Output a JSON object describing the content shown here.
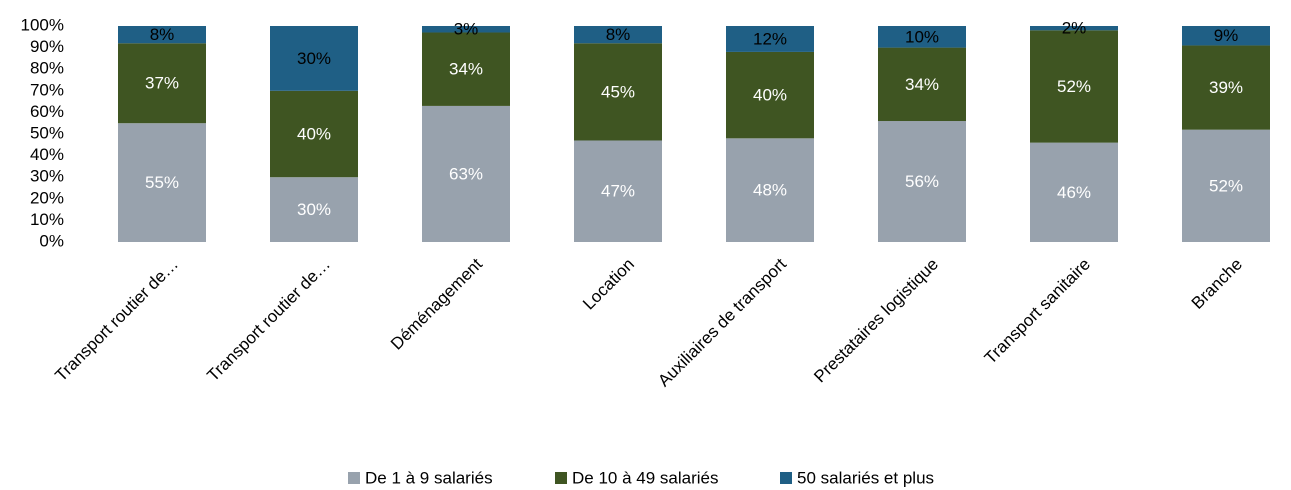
{
  "chart_data": {
    "type": "bar",
    "stacked": true,
    "categories": [
      "Transport routier de…",
      "Transport routier de…",
      "Déménagement",
      "Location",
      "Auxiliaires de transport",
      "Prestataires logistique",
      "Transport sanitaire",
      "Branche"
    ],
    "series": [
      {
        "name": "De 1 à 9 salariés",
        "color": "#98a2ad",
        "label_color": "#ffffff",
        "values": [
          55,
          30,
          63,
          47,
          48,
          56,
          46,
          52
        ],
        "value_labels": [
          "55%",
          "30%",
          "63%",
          "47%",
          "48%",
          "56%",
          "46%",
          "52%"
        ]
      },
      {
        "name": "De 10 à 49 salariés",
        "color": "#3f5522",
        "label_color": "#ffffff",
        "values": [
          37,
          40,
          34,
          45,
          40,
          34,
          52,
          39
        ],
        "value_labels": [
          "37%",
          "40%",
          "34%",
          "45%",
          "40%",
          "34%",
          "52%",
          "39%"
        ]
      },
      {
        "name": "50 salariés et plus",
        "color": "#1f5f85",
        "label_color": "#000000",
        "values": [
          8,
          30,
          3,
          8,
          12,
          10,
          2,
          9
        ],
        "value_labels": [
          "8%",
          "30%",
          "3%",
          "8%",
          "12%",
          "10%",
          "2%",
          "9%"
        ]
      }
    ],
    "ylim": [
      0,
      100
    ],
    "yticks": [
      {
        "value": 0,
        "label": "0%"
      },
      {
        "value": 10,
        "label": "10%"
      },
      {
        "value": 20,
        "label": "20%"
      },
      {
        "value": 30,
        "label": "30%"
      },
      {
        "value": 40,
        "label": "40%"
      },
      {
        "value": 50,
        "label": "50%"
      },
      {
        "value": 60,
        "label": "60%"
      },
      {
        "value": 70,
        "label": "70%"
      },
      {
        "value": 80,
        "label": "80%"
      },
      {
        "value": 90,
        "label": "90%"
      },
      {
        "value": 100,
        "label": "100%"
      }
    ],
    "legend": "bottom"
  }
}
